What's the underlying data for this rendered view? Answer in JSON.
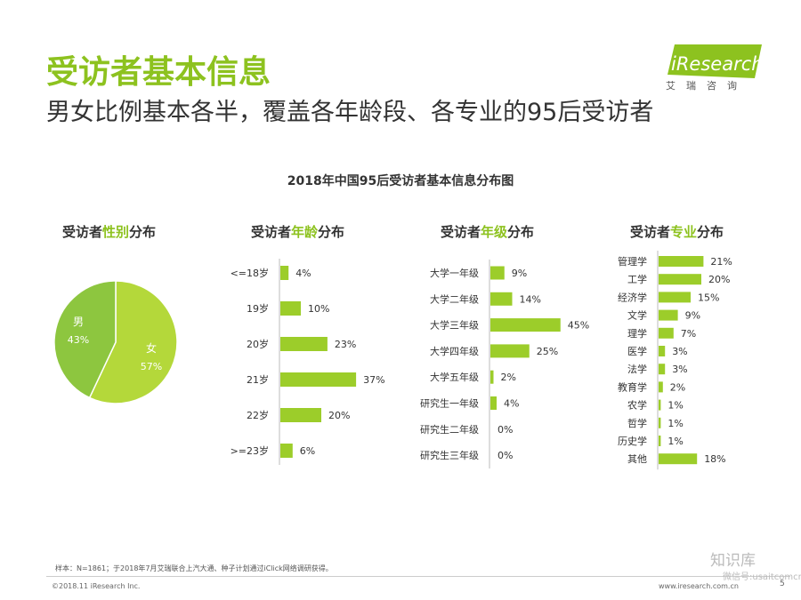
{
  "header": {
    "title": "受访者基本信息",
    "subtitle": "男女比例基本各半，覆盖各年龄段、各专业的95后受访者"
  },
  "logo": {
    "text": "iResearch",
    "cn": "艾瑞咨询"
  },
  "colors": {
    "accent": "#8dc21f",
    "bar": "#9ccd2a",
    "pie_female": "#b4d83a",
    "pie_male": "#8dc63f"
  },
  "panels": {
    "gender": {
      "prefix": "受访者",
      "highlight": "性别",
      "suffix": "分布"
    },
    "age": {
      "prefix": "受访者",
      "highlight": "年龄",
      "suffix": "分布"
    },
    "grade": {
      "prefix": "受访者",
      "highlight": "年级",
      "suffix": "分布"
    },
    "major": {
      "prefix": "受访者",
      "highlight": "专业",
      "suffix": "分布"
    }
  },
  "chart_data": [
    {
      "type": "pie",
      "title": "受访者性别分布",
      "slices": [
        {
          "label": "女",
          "value": 57,
          "text": "57%"
        },
        {
          "label": "男",
          "value": 43,
          "text": "43%"
        }
      ]
    },
    {
      "type": "bar",
      "title": "受访者年龄分布",
      "categories": [
        "<=18岁",
        "19岁",
        "20岁",
        "21岁",
        "22岁",
        ">=23岁"
      ],
      "values": [
        4,
        10,
        23,
        37,
        20,
        6
      ],
      "labels": [
        "4%",
        "10%",
        "23%",
        "37%",
        "20%",
        "6%"
      ]
    },
    {
      "type": "bar",
      "title": "受访者年级分布",
      "categories": [
        "大学一年级",
        "大学二年级",
        "大学三年级",
        "大学四年级",
        "大学五年级",
        "研究生一年级",
        "研究生二年级",
        "研究生三年级"
      ],
      "values": [
        9,
        14,
        45,
        25,
        2,
        4,
        0,
        0
      ],
      "labels": [
        "9%",
        "14%",
        "45%",
        "25%",
        "2%",
        "4%",
        "0%",
        "0%"
      ]
    },
    {
      "type": "bar",
      "title": "受访者专业分布",
      "categories": [
        "管理学",
        "工学",
        "经济学",
        "文学",
        "理学",
        "医学",
        "法学",
        "教育学",
        "农学",
        "哲学",
        "历史学",
        "其他"
      ],
      "values": [
        21,
        20,
        15,
        9,
        7,
        3,
        3,
        2,
        1,
        1,
        1,
        18
      ],
      "labels": [
        "21%",
        "20%",
        "15%",
        "9%",
        "7%",
        "3%",
        "3%",
        "2%",
        "1%",
        "1%",
        "1%",
        "18%"
      ]
    }
  ],
  "chart_title": "2018年中国95后受访者基本信息分布图",
  "footer": {
    "note": "样本：N=1861；于2018年7月艾瑞联合上汽大通、种子计划通过iClick网络调研获得。",
    "copyright": "©2018.11 iResearch Inc.",
    "website": "www.iresearch.com.cn",
    "page": "5",
    "watermark": "知识库",
    "watermark_sub": "微信号:usaitcomcn"
  }
}
